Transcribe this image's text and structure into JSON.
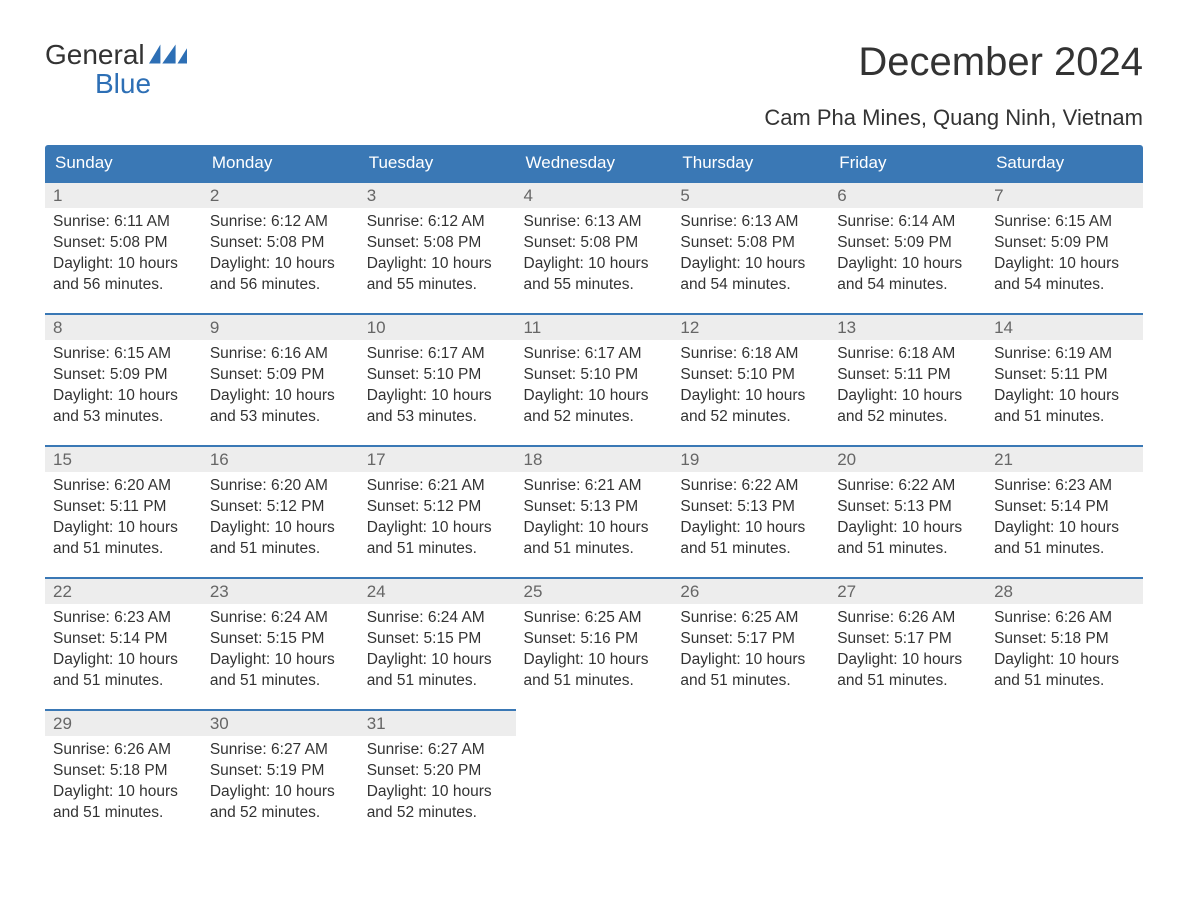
{
  "logo": {
    "word1": "General",
    "word2": "Blue"
  },
  "title": "December 2024",
  "subtitle": "Cam Pha Mines, Quang Ninh, Vietnam",
  "header_bg": "#3a78b5",
  "header_text": "#ffffff",
  "daynum_bg": "#ededed",
  "daynum_border": "#3a78b5",
  "day_names": [
    "Sunday",
    "Monday",
    "Tuesday",
    "Wednesday",
    "Thursday",
    "Friday",
    "Saturday"
  ],
  "weeks": [
    [
      {
        "n": "1",
        "sr": "6:11 AM",
        "ss": "5:08 PM",
        "dl": "10 hours and 56 minutes."
      },
      {
        "n": "2",
        "sr": "6:12 AM",
        "ss": "5:08 PM",
        "dl": "10 hours and 56 minutes."
      },
      {
        "n": "3",
        "sr": "6:12 AM",
        "ss": "5:08 PM",
        "dl": "10 hours and 55 minutes."
      },
      {
        "n": "4",
        "sr": "6:13 AM",
        "ss": "5:08 PM",
        "dl": "10 hours and 55 minutes."
      },
      {
        "n": "5",
        "sr": "6:13 AM",
        "ss": "5:08 PM",
        "dl": "10 hours and 54 minutes."
      },
      {
        "n": "6",
        "sr": "6:14 AM",
        "ss": "5:09 PM",
        "dl": "10 hours and 54 minutes."
      },
      {
        "n": "7",
        "sr": "6:15 AM",
        "ss": "5:09 PM",
        "dl": "10 hours and 54 minutes."
      }
    ],
    [
      {
        "n": "8",
        "sr": "6:15 AM",
        "ss": "5:09 PM",
        "dl": "10 hours and 53 minutes."
      },
      {
        "n": "9",
        "sr": "6:16 AM",
        "ss": "5:09 PM",
        "dl": "10 hours and 53 minutes."
      },
      {
        "n": "10",
        "sr": "6:17 AM",
        "ss": "5:10 PM",
        "dl": "10 hours and 53 minutes."
      },
      {
        "n": "11",
        "sr": "6:17 AM",
        "ss": "5:10 PM",
        "dl": "10 hours and 52 minutes."
      },
      {
        "n": "12",
        "sr": "6:18 AM",
        "ss": "5:10 PM",
        "dl": "10 hours and 52 minutes."
      },
      {
        "n": "13",
        "sr": "6:18 AM",
        "ss": "5:11 PM",
        "dl": "10 hours and 52 minutes."
      },
      {
        "n": "14",
        "sr": "6:19 AM",
        "ss": "5:11 PM",
        "dl": "10 hours and 51 minutes."
      }
    ],
    [
      {
        "n": "15",
        "sr": "6:20 AM",
        "ss": "5:11 PM",
        "dl": "10 hours and 51 minutes."
      },
      {
        "n": "16",
        "sr": "6:20 AM",
        "ss": "5:12 PM",
        "dl": "10 hours and 51 minutes."
      },
      {
        "n": "17",
        "sr": "6:21 AM",
        "ss": "5:12 PM",
        "dl": "10 hours and 51 minutes."
      },
      {
        "n": "18",
        "sr": "6:21 AM",
        "ss": "5:13 PM",
        "dl": "10 hours and 51 minutes."
      },
      {
        "n": "19",
        "sr": "6:22 AM",
        "ss": "5:13 PM",
        "dl": "10 hours and 51 minutes."
      },
      {
        "n": "20",
        "sr": "6:22 AM",
        "ss": "5:13 PM",
        "dl": "10 hours and 51 minutes."
      },
      {
        "n": "21",
        "sr": "6:23 AM",
        "ss": "5:14 PM",
        "dl": "10 hours and 51 minutes."
      }
    ],
    [
      {
        "n": "22",
        "sr": "6:23 AM",
        "ss": "5:14 PM",
        "dl": "10 hours and 51 minutes."
      },
      {
        "n": "23",
        "sr": "6:24 AM",
        "ss": "5:15 PM",
        "dl": "10 hours and 51 minutes."
      },
      {
        "n": "24",
        "sr": "6:24 AM",
        "ss": "5:15 PM",
        "dl": "10 hours and 51 minutes."
      },
      {
        "n": "25",
        "sr": "6:25 AM",
        "ss": "5:16 PM",
        "dl": "10 hours and 51 minutes."
      },
      {
        "n": "26",
        "sr": "6:25 AM",
        "ss": "5:17 PM",
        "dl": "10 hours and 51 minutes."
      },
      {
        "n": "27",
        "sr": "6:26 AM",
        "ss": "5:17 PM",
        "dl": "10 hours and 51 minutes."
      },
      {
        "n": "28",
        "sr": "6:26 AM",
        "ss": "5:18 PM",
        "dl": "10 hours and 51 minutes."
      }
    ],
    [
      {
        "n": "29",
        "sr": "6:26 AM",
        "ss": "5:18 PM",
        "dl": "10 hours and 51 minutes."
      },
      {
        "n": "30",
        "sr": "6:27 AM",
        "ss": "5:19 PM",
        "dl": "10 hours and 52 minutes."
      },
      {
        "n": "31",
        "sr": "6:27 AM",
        "ss": "5:20 PM",
        "dl": "10 hours and 52 minutes."
      },
      null,
      null,
      null,
      null
    ]
  ],
  "labels": {
    "sunrise": "Sunrise: ",
    "sunset": "Sunset: ",
    "daylight": "Daylight: "
  }
}
